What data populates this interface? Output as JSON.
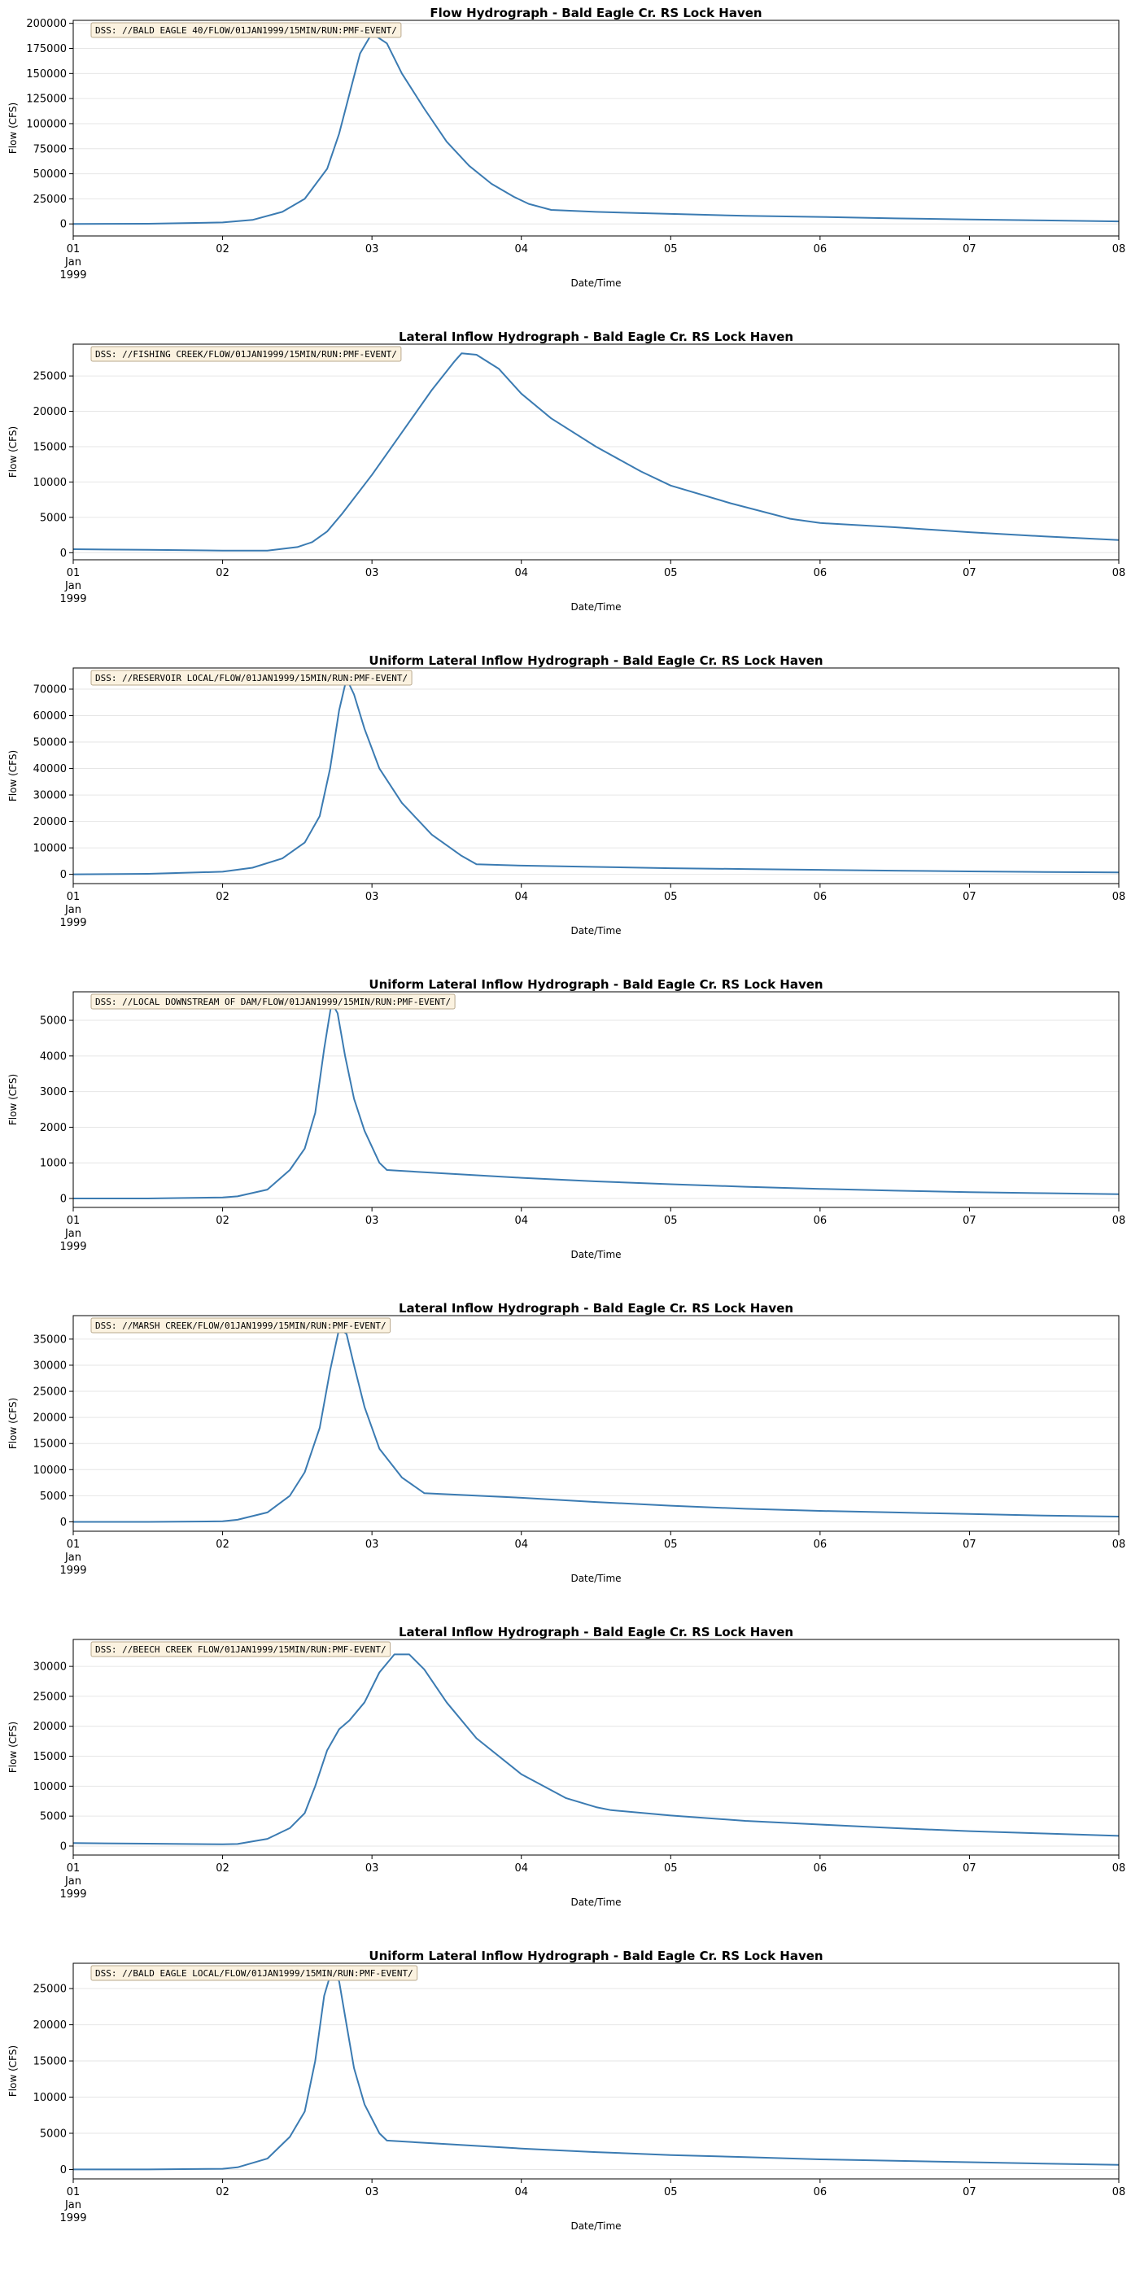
{
  "colors": {
    "line": "#3b7bb2",
    "grid": "#e6e6e6",
    "dss_box_fill": "#fbf2e0",
    "dss_box_stroke": "#b9a98e"
  },
  "chart_data": [
    {
      "type": "line",
      "title": "Flow Hydrograph - Bald Eagle Cr. RS Lock Haven",
      "dss_label": "DSS: //BALD EAGLE 40/FLOW/01JAN1999/15MIN/RUN:PMF-EVENT/",
      "xlabel": "Date/Time",
      "ylabel": "Flow (CFS)",
      "x_ticks": [
        "01",
        "02",
        "03",
        "04",
        "05",
        "06",
        "07",
        "08"
      ],
      "x_sub": [
        "Jan",
        "1999"
      ],
      "xlim": [
        0,
        7
      ],
      "ylim": [
        -12000,
        203000
      ],
      "y_ticks": [
        0,
        25000,
        50000,
        75000,
        100000,
        125000,
        150000,
        175000,
        200000
      ],
      "grid": "horizontal",
      "x": [
        0,
        0.5,
        1.0,
        1.2,
        1.4,
        1.55,
        1.7,
        1.78,
        1.85,
        1.92,
        2.0,
        2.1,
        2.2,
        2.35,
        2.5,
        2.65,
        2.8,
        2.95,
        3.05,
        3.2,
        3.5,
        4.0,
        4.5,
        5.0,
        5.5,
        6.0,
        6.5,
        7.0
      ],
      "y": [
        0,
        200,
        1500,
        4000,
        12000,
        25000,
        55000,
        90000,
        130000,
        170000,
        190000,
        180000,
        150000,
        115000,
        82000,
        58000,
        40000,
        27000,
        20000,
        14000,
        12000,
        10000,
        8000,
        7000,
        5500,
        4500,
        3500,
        2500
      ]
    },
    {
      "type": "line",
      "title": "Lateral Inflow Hydrograph - Bald Eagle Cr. RS Lock Haven",
      "dss_label": "DSS: //FISHING CREEK/FLOW/01JAN1999/15MIN/RUN:PMF-EVENT/",
      "xlabel": "Date/Time",
      "ylabel": "Flow (CFS)",
      "x_ticks": [
        "01",
        "02",
        "03",
        "04",
        "05",
        "06",
        "07",
        "08"
      ],
      "x_sub": [
        "Jan",
        "1999"
      ],
      "xlim": [
        0,
        7
      ],
      "ylim": [
        -1000,
        29500
      ],
      "y_ticks": [
        0,
        5000,
        10000,
        15000,
        20000,
        25000
      ],
      "grid": "horizontal",
      "x": [
        0,
        0.5,
        1.0,
        1.3,
        1.5,
        1.6,
        1.7,
        1.8,
        2.0,
        2.2,
        2.4,
        2.55,
        2.6,
        2.7,
        2.85,
        3.0,
        3.2,
        3.5,
        3.8,
        4.0,
        4.4,
        4.8,
        5.0,
        5.5,
        6.0,
        6.5,
        7.0
      ],
      "y": [
        500,
        400,
        300,
        300,
        800,
        1500,
        3000,
        5500,
        11000,
        17000,
        23000,
        27000,
        28200,
        28000,
        26000,
        22500,
        19000,
        15000,
        11500,
        9500,
        7000,
        4800,
        4200,
        3600,
        2900,
        2300,
        1800
      ]
    },
    {
      "type": "line",
      "title": "Uniform Lateral Inflow Hydrograph - Bald Eagle Cr. RS Lock Haven",
      "dss_label": "DSS: //RESERVOIR LOCAL/FLOW/01JAN1999/15MIN/RUN:PMF-EVENT/",
      "xlabel": "Date/Time",
      "ylabel": "Flow (CFS)",
      "x_ticks": [
        "01",
        "02",
        "03",
        "04",
        "05",
        "06",
        "07",
        "08"
      ],
      "x_sub": [
        "Jan",
        "1999"
      ],
      "xlim": [
        0,
        7
      ],
      "ylim": [
        -3500,
        78000
      ],
      "y_ticks": [
        0,
        10000,
        20000,
        30000,
        40000,
        50000,
        60000,
        70000
      ],
      "grid": "horizontal",
      "x": [
        0,
        0.5,
        1.0,
        1.2,
        1.4,
        1.55,
        1.65,
        1.72,
        1.78,
        1.83,
        1.88,
        1.95,
        2.05,
        2.2,
        2.4,
        2.6,
        2.7,
        3.0,
        3.5,
        4.0,
        4.5,
        5.0,
        5.5,
        6.0,
        6.5,
        7.0
      ],
      "y": [
        0,
        200,
        1000,
        2500,
        6000,
        12000,
        22000,
        40000,
        62000,
        74000,
        68000,
        55000,
        40000,
        27000,
        15000,
        7000,
        3800,
        3300,
        2800,
        2300,
        2000,
        1700,
        1400,
        1100,
        900,
        700
      ]
    },
    {
      "type": "line",
      "title": "Uniform Lateral Inflow Hydrograph - Bald Eagle Cr. RS Lock Haven",
      "dss_label": "DSS: //LOCAL DOWNSTREAM OF DAM/FLOW/01JAN1999/15MIN/RUN:PMF-EVENT/",
      "xlabel": "Date/Time",
      "ylabel": "Flow (CFS)",
      "x_ticks": [
        "01",
        "02",
        "03",
        "04",
        "05",
        "06",
        "07",
        "08"
      ],
      "x_sub": [
        "Jan",
        "1999"
      ],
      "xlim": [
        0,
        7
      ],
      "ylim": [
        -250,
        5800
      ],
      "y_ticks": [
        0,
        1000,
        2000,
        3000,
        4000,
        5000
      ],
      "grid": "horizontal",
      "x": [
        0,
        0.5,
        1.0,
        1.1,
        1.3,
        1.45,
        1.55,
        1.62,
        1.68,
        1.73,
        1.77,
        1.82,
        1.88,
        1.95,
        2.05,
        2.1,
        2.5,
        3.0,
        3.5,
        4.0,
        4.5,
        5.0,
        5.5,
        6.0,
        6.5,
        7.0
      ],
      "y": [
        0,
        0,
        30,
        60,
        250,
        800,
        1400,
        2400,
        4200,
        5500,
        5200,
        4000,
        2800,
        1900,
        1000,
        800,
        700,
        580,
        480,
        400,
        330,
        270,
        220,
        180,
        150,
        120
      ]
    },
    {
      "type": "line",
      "title": "Lateral Inflow Hydrograph - Bald Eagle Cr. RS Lock Haven",
      "dss_label": "DSS: //MARSH CREEK/FLOW/01JAN1999/15MIN/RUN:PMF-EVENT/",
      "xlabel": "Date/Time",
      "ylabel": "Flow (CFS)",
      "x_ticks": [
        "01",
        "02",
        "03",
        "04",
        "05",
        "06",
        "07",
        "08"
      ],
      "x_sub": [
        "Jan",
        "1999"
      ],
      "xlim": [
        0,
        7
      ],
      "ylim": [
        -1800,
        39500
      ],
      "y_ticks": [
        0,
        5000,
        10000,
        15000,
        20000,
        25000,
        30000,
        35000
      ],
      "grid": "horizontal",
      "x": [
        0,
        0.5,
        1.0,
        1.1,
        1.3,
        1.45,
        1.55,
        1.65,
        1.72,
        1.78,
        1.83,
        1.88,
        1.95,
        2.05,
        2.2,
        2.35,
        3.0,
        3.5,
        4.0,
        4.5,
        5.0,
        5.5,
        6.0,
        6.5,
        7.0
      ],
      "y": [
        0,
        0,
        100,
        400,
        1800,
        5000,
        9500,
        18000,
        29000,
        37000,
        36000,
        30000,
        22000,
        14000,
        8500,
        5500,
        4600,
        3800,
        3100,
        2500,
        2100,
        1800,
        1500,
        1200,
        1000
      ]
    },
    {
      "type": "line",
      "title": "Lateral Inflow Hydrograph - Bald Eagle Cr. RS Lock Haven",
      "dss_label": "DSS: //BEECH CREEK FLOW/01JAN1999/15MIN/RUN:PMF-EVENT/",
      "xlabel": "Date/Time",
      "ylabel": "Flow (CFS)",
      "x_ticks": [
        "01",
        "02",
        "03",
        "04",
        "05",
        "06",
        "07",
        "08"
      ],
      "x_sub": [
        "Jan",
        "1999"
      ],
      "xlim": [
        0,
        7
      ],
      "ylim": [
        -1500,
        34500
      ],
      "y_ticks": [
        0,
        5000,
        10000,
        15000,
        20000,
        25000,
        30000
      ],
      "grid": "horizontal",
      "x": [
        0,
        0.5,
        1.0,
        1.1,
        1.3,
        1.45,
        1.55,
        1.62,
        1.7,
        1.78,
        1.85,
        1.95,
        2.05,
        2.15,
        2.25,
        2.35,
        2.5,
        2.7,
        3.0,
        3.3,
        3.5,
        3.6,
        4.0,
        4.5,
        5.0,
        5.5,
        6.0,
        6.5,
        7.0
      ],
      "y": [
        500,
        400,
        300,
        350,
        1200,
        3000,
        5500,
        10000,
        16000,
        19500,
        21000,
        24000,
        29000,
        32000,
        32000,
        29500,
        24000,
        18000,
        12000,
        8000,
        6500,
        6000,
        5100,
        4200,
        3600,
        3000,
        2500,
        2100,
        1700
      ]
    },
    {
      "type": "line",
      "title": "Uniform Lateral Inflow Hydrograph - Bald Eagle Cr. RS Lock Haven",
      "dss_label": "DSS: //BALD EAGLE LOCAL/FLOW/01JAN1999/15MIN/RUN:PMF-EVENT/",
      "xlabel": "Date/Time",
      "ylabel": "Flow (CFS)",
      "x_ticks": [
        "01",
        "02",
        "03",
        "04",
        "05",
        "06",
        "07",
        "08"
      ],
      "x_sub": [
        "Jan",
        "1999"
      ],
      "xlim": [
        0,
        7
      ],
      "ylim": [
        -1300,
        28500
      ],
      "y_ticks": [
        0,
        5000,
        10000,
        15000,
        20000,
        25000
      ],
      "grid": "horizontal",
      "x": [
        0,
        0.5,
        1.0,
        1.1,
        1.3,
        1.45,
        1.55,
        1.62,
        1.68,
        1.73,
        1.78,
        1.83,
        1.88,
        1.95,
        2.05,
        2.1,
        2.5,
        3.0,
        3.5,
        4.0,
        4.5,
        5.0,
        5.5,
        6.0,
        6.5,
        7.0
      ],
      "y": [
        0,
        0,
        100,
        300,
        1500,
        4500,
        8000,
        15000,
        24000,
        27500,
        26000,
        20000,
        14000,
        9000,
        5000,
        4000,
        3500,
        2900,
        2400,
        2000,
        1700,
        1400,
        1200,
        1000,
        800,
        650
      ]
    }
  ]
}
